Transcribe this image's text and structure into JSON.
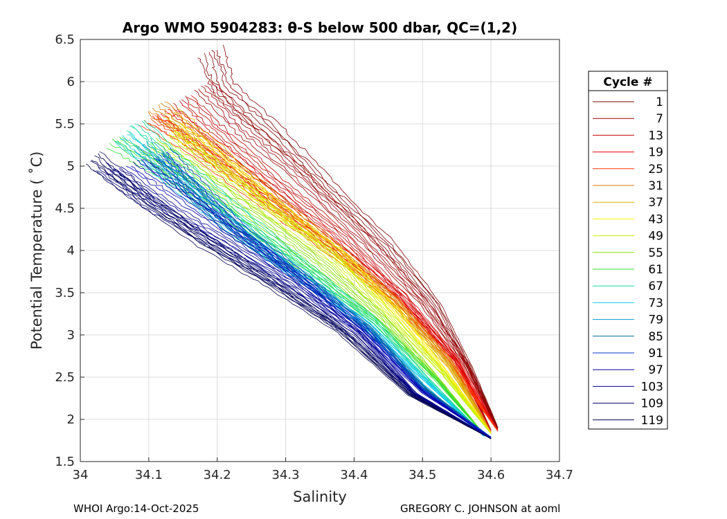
{
  "chart_data": {
    "type": "line",
    "title": "Argo WMO 5904283: θ-S below 500 dbar,  QC=(1,2)",
    "xlabel": "Salinity",
    "ylabel": "Potential Temperature ( ˚C)",
    "xlim": [
      34,
      34.7
    ],
    "ylim": [
      1.5,
      6.5
    ],
    "xticks": [
      34,
      34.1,
      34.2,
      34.3,
      34.4,
      34.5,
      34.6,
      34.7
    ],
    "xtick_labels": [
      "34",
      "34.1",
      "34.2",
      "34.3",
      "34.4",
      "34.5",
      "34.6",
      "34.7"
    ],
    "yticks": [
      1.5,
      2,
      2.5,
      3,
      3.5,
      4,
      4.5,
      5,
      5.5,
      6,
      6.5
    ],
    "ytick_labels": [
      "1.5",
      "2",
      "2.5",
      "3",
      "3.5",
      "4",
      "4.5",
      "5",
      "5.5",
      "6",
      "6.5"
    ],
    "grid": true,
    "legend_position": "outside-right",
    "legend_title": "Cycle #",
    "legend": [
      {
        "label": "1",
        "color": "#7f0000"
      },
      {
        "label": "7",
        "color": "#9a0000"
      },
      {
        "label": "13",
        "color": "#bf0000"
      },
      {
        "label": "19",
        "color": "#e60000"
      },
      {
        "label": "25",
        "color": "#ff3300"
      },
      {
        "label": "31",
        "color": "#d97a00"
      },
      {
        "label": "37",
        "color": "#e0b000"
      },
      {
        "label": "43",
        "color": "#ffee00"
      },
      {
        "label": "49",
        "color": "#c8f000"
      },
      {
        "label": "55",
        "color": "#88e000"
      },
      {
        "label": "61",
        "color": "#33dd33"
      },
      {
        "label": "67",
        "color": "#11d9a0"
      },
      {
        "label": "73",
        "color": "#11ccee"
      },
      {
        "label": "79",
        "color": "#0099cc"
      },
      {
        "label": "85",
        "color": "#006699"
      },
      {
        "label": "91",
        "color": "#0033cc"
      },
      {
        "label": "97",
        "color": "#0000b0"
      },
      {
        "label": "103",
        "color": "#000090"
      },
      {
        "label": "109",
        "color": "#000070"
      },
      {
        "label": "119",
        "color": "#000050"
      }
    ],
    "series": [
      {
        "name": "1",
        "color": "#7f0000",
        "s": [
          34.19,
          34.21,
          34.28,
          34.36,
          34.45,
          34.52,
          34.57,
          34.61
        ],
        "t": [
          6.35,
          5.9,
          5.4,
          4.75,
          4.05,
          3.35,
          2.6,
          1.9
        ]
      },
      {
        "name": "7",
        "color": "#9a0000",
        "s": [
          34.18,
          34.24,
          34.32,
          34.42,
          34.5,
          34.56,
          34.61
        ],
        "t": [
          5.95,
          5.45,
          4.9,
          4.1,
          3.4,
          2.7,
          1.88
        ]
      },
      {
        "name": "13",
        "color": "#bf0000",
        "s": [
          34.15,
          34.2,
          34.28,
          34.38,
          34.47,
          34.55,
          34.6
        ],
        "t": [
          5.8,
          5.4,
          4.85,
          4.2,
          3.45,
          2.7,
          1.87
        ]
      },
      {
        "name": "19",
        "color": "#e60000",
        "s": [
          34.12,
          34.17,
          34.26,
          34.36,
          34.47,
          34.55,
          34.61
        ],
        "t": [
          5.65,
          5.35,
          4.8,
          4.15,
          3.45,
          2.7,
          1.86
        ]
      },
      {
        "name": "25",
        "color": "#ff3300",
        "s": [
          34.1,
          34.16,
          34.25,
          34.36,
          34.46,
          34.54,
          34.61
        ],
        "t": [
          5.55,
          5.25,
          4.7,
          4.05,
          3.42,
          2.7,
          1.86
        ]
      },
      {
        "name": "31",
        "color": "#d97a00",
        "s": [
          34.11,
          34.17,
          34.26,
          34.37,
          34.46,
          34.54,
          34.6
        ],
        "t": [
          5.7,
          5.3,
          4.75,
          4.05,
          3.4,
          2.68,
          1.85
        ]
      },
      {
        "name": "37",
        "color": "#e0b000",
        "s": [
          34.13,
          34.19,
          34.27,
          34.37,
          34.46,
          34.54,
          34.6
        ],
        "t": [
          5.6,
          5.2,
          4.6,
          4.0,
          3.35,
          2.62,
          1.84
        ]
      },
      {
        "name": "43",
        "color": "#ffee00",
        "s": [
          34.14,
          34.2,
          34.28,
          34.38,
          34.46,
          34.53,
          34.6
        ],
        "t": [
          5.45,
          5.1,
          4.55,
          3.95,
          3.3,
          2.6,
          1.84
        ]
      },
      {
        "name": "49",
        "color": "#c8f000",
        "s": [
          34.13,
          34.19,
          34.27,
          34.37,
          34.45,
          34.53,
          34.6
        ],
        "t": [
          5.35,
          5.0,
          4.5,
          3.9,
          3.25,
          2.55,
          1.83
        ]
      },
      {
        "name": "55",
        "color": "#88e000",
        "s": [
          34.1,
          34.16,
          34.25,
          34.35,
          34.44,
          34.52,
          34.59
        ],
        "t": [
          5.25,
          4.95,
          4.45,
          3.85,
          3.22,
          2.5,
          1.82
        ]
      },
      {
        "name": "61",
        "color": "#33dd33",
        "s": [
          34.05,
          34.12,
          34.22,
          34.33,
          34.43,
          34.52,
          34.59
        ],
        "t": [
          5.3,
          4.95,
          4.4,
          3.8,
          3.18,
          2.48,
          1.82
        ]
      },
      {
        "name": "67",
        "color": "#11d9a0",
        "s": [
          34.08,
          34.14,
          34.23,
          34.33,
          34.43,
          34.51,
          34.59
        ],
        "t": [
          5.5,
          5.05,
          4.45,
          3.8,
          3.15,
          2.45,
          1.81
        ]
      },
      {
        "name": "73",
        "color": "#11ccee",
        "s": [
          34.06,
          34.12,
          34.21,
          34.31,
          34.42,
          34.51,
          34.59
        ],
        "t": [
          5.35,
          4.95,
          4.35,
          3.75,
          3.12,
          2.42,
          1.8
        ]
      },
      {
        "name": "79",
        "color": "#0099cc",
        "s": [
          34.09,
          34.14,
          34.22,
          34.32,
          34.42,
          34.5,
          34.59
        ],
        "t": [
          5.25,
          4.9,
          4.35,
          3.72,
          3.1,
          2.4,
          1.8
        ]
      },
      {
        "name": "85",
        "color": "#006699",
        "s": [
          34.11,
          34.15,
          34.22,
          34.32,
          34.42,
          34.5,
          34.6
        ],
        "t": [
          5.1,
          4.8,
          4.25,
          3.7,
          3.08,
          2.38,
          1.79
        ]
      },
      {
        "name": "91",
        "color": "#0033cc",
        "s": [
          34.12,
          34.17,
          34.24,
          34.33,
          34.42,
          34.5,
          34.6
        ],
        "t": [
          5.15,
          4.75,
          4.2,
          3.65,
          3.05,
          2.35,
          1.79
        ]
      },
      {
        "name": "97",
        "color": "#0000b0",
        "s": [
          34.08,
          34.14,
          34.23,
          34.32,
          34.41,
          34.5,
          34.6
        ],
        "t": [
          5.05,
          4.7,
          4.2,
          3.65,
          3.05,
          2.33,
          1.78
        ]
      },
      {
        "name": "103",
        "color": "#000090",
        "s": [
          34.05,
          34.12,
          34.21,
          34.31,
          34.41,
          34.49,
          34.6
        ],
        "t": [
          4.95,
          4.55,
          4.1,
          3.6,
          3.0,
          2.3,
          1.78
        ]
      },
      {
        "name": "109",
        "color": "#000070",
        "s": [
          34.03,
          34.1,
          34.2,
          34.3,
          34.4,
          34.49,
          34.6
        ],
        "t": [
          5.0,
          4.55,
          4.05,
          3.55,
          2.98,
          2.28,
          1.77
        ]
      },
      {
        "name": "119",
        "color": "#000050",
        "s": [
          34.02,
          34.08,
          34.18,
          34.28,
          34.38,
          34.48,
          34.6
        ],
        "t": [
          5.1,
          4.7,
          4.1,
          3.6,
          3.05,
          2.3,
          1.77
        ]
      }
    ]
  },
  "footer": {
    "left": "WHOI Argo:14-Oct-2025",
    "right": "GREGORY C. JOHNSON at aoml"
  }
}
